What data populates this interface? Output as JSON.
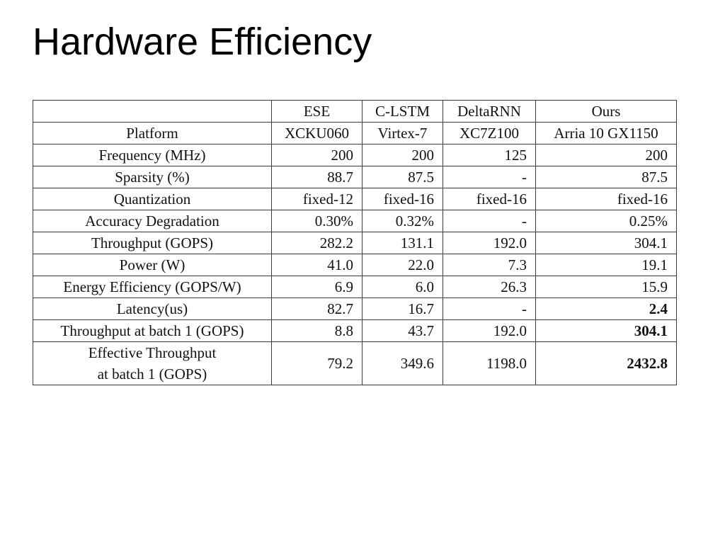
{
  "slide": {
    "title": "Hardware Efficiency"
  },
  "table": {
    "header": [
      "",
      "ESE",
      "C-LSTM",
      "DeltaRNN",
      "Ours"
    ],
    "rows": [
      {
        "label": "Platform",
        "values": [
          "XCKU060",
          "Virtex-7",
          "XC7Z100",
          "Arria 10 GX1150"
        ]
      },
      {
        "label": "Frequency (MHz)",
        "values": [
          "200",
          "200",
          "125",
          "200"
        ]
      },
      {
        "label": "Sparsity (%)",
        "values": [
          "88.7",
          "87.5",
          "-",
          "87.5"
        ]
      },
      {
        "label": "Quantization",
        "values": [
          "fixed-12",
          "fixed-16",
          "fixed-16",
          "fixed-16"
        ]
      },
      {
        "label": "Accuracy Degradation",
        "values": [
          "0.30%",
          "0.32%",
          "-",
          "0.25%"
        ]
      },
      {
        "label": "Throughput (GOPS)",
        "values": [
          "282.2",
          "131.1",
          "192.0",
          "304.1"
        ]
      },
      {
        "label": "Power (W)",
        "values": [
          "41.0",
          "22.0",
          "7.3",
          "19.1"
        ]
      },
      {
        "label": "Energy Efficiency (GOPS/W)",
        "values": [
          "6.9",
          "6.0",
          "26.3",
          "15.9"
        ]
      },
      {
        "label": "Latency(us)",
        "values": [
          "82.7",
          "16.7",
          "-",
          "2.4"
        ]
      },
      {
        "label": "Throughput at batch 1 (GOPS)",
        "values": [
          "8.8",
          "43.7",
          "192.0",
          "304.1"
        ]
      },
      {
        "label_line1": "Effective Throughput",
        "label_line2": "at batch 1 (GOPS)",
        "values": [
          "79.2",
          "349.6",
          "1198.0",
          "2432.8"
        ]
      }
    ]
  }
}
